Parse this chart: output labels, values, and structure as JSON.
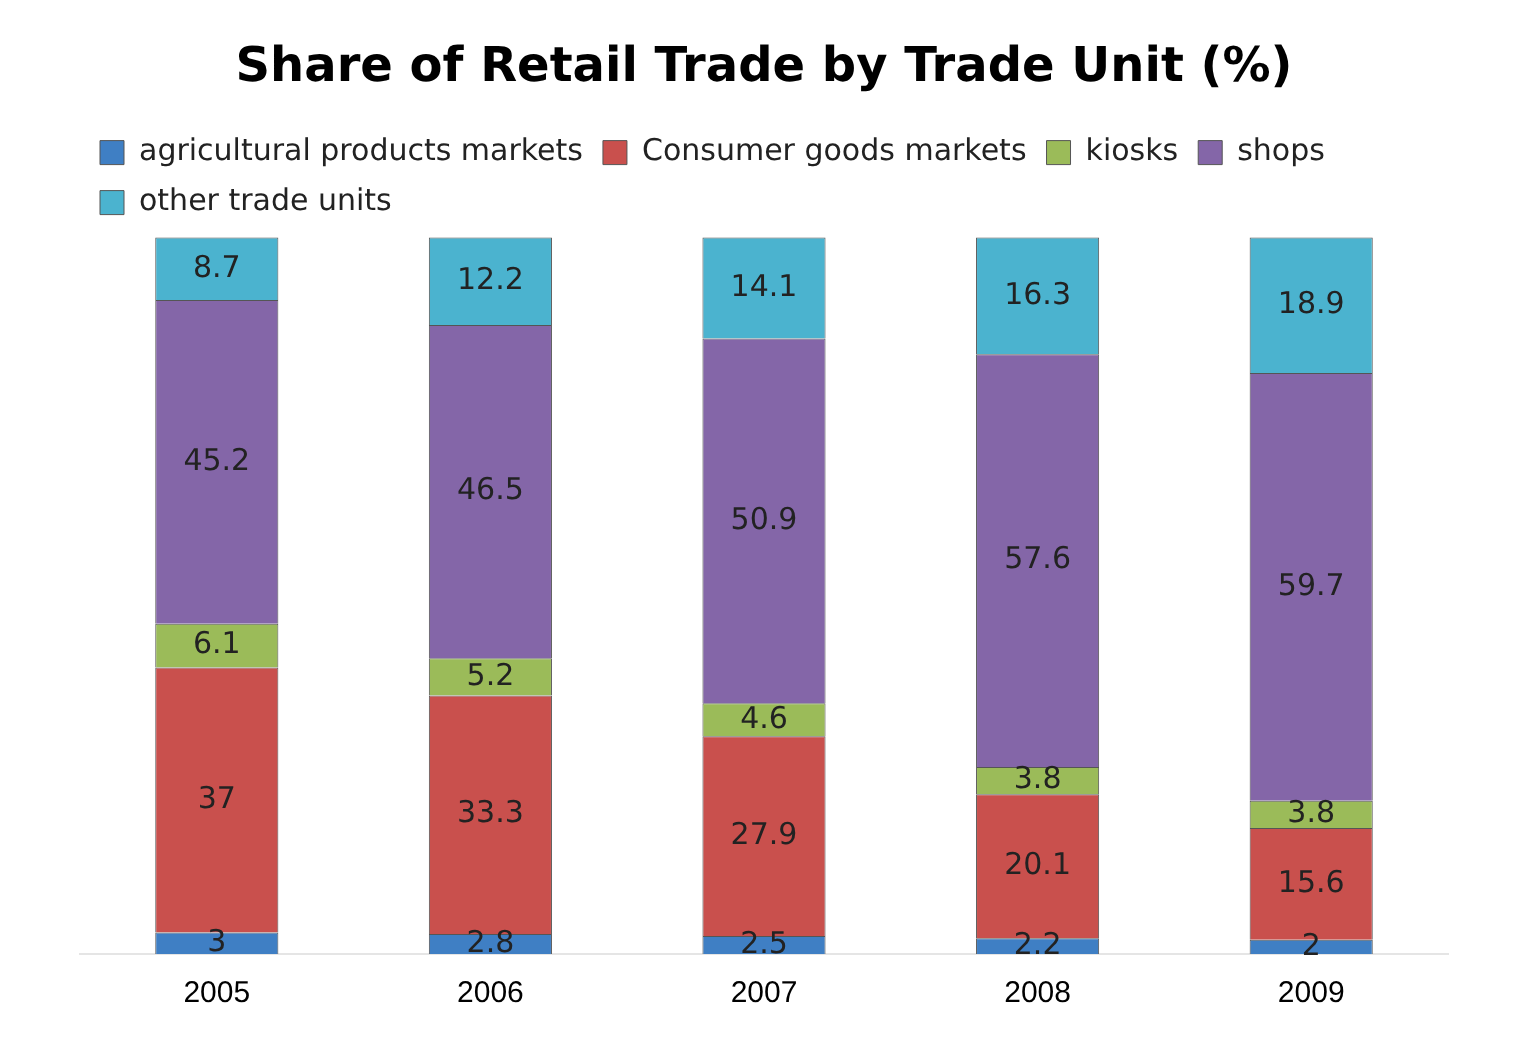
{
  "chart_data": {
    "type": "bar",
    "title": "Share of Retail Trade by Trade Unit (%)",
    "stacked": true,
    "legend": "top",
    "grid": false,
    "data_labels": true,
    "categories": [
      "2005",
      "2006",
      "2007",
      "2008",
      "2009"
    ],
    "series": [
      {
        "name": "agricultural products markets",
        "color": "#3f7fc4",
        "values": [
          3,
          2.8,
          2.5,
          2.2,
          2
        ]
      },
      {
        "name": "Consumer goods markets",
        "color": "#c9504d",
        "values": [
          37,
          33.3,
          27.9,
          20.1,
          15.6
        ]
      },
      {
        "name": "kiosks",
        "color": "#9bbb59",
        "values": [
          6.1,
          5.2,
          4.6,
          3.8,
          3.8
        ]
      },
      {
        "name": "shops",
        "color": "#8466a8",
        "values": [
          45.2,
          46.5,
          50.9,
          57.6,
          59.7
        ]
      },
      {
        "name": "other trade units",
        "color": "#4bb3cf",
        "values": [
          8.7,
          12.2,
          14.1,
          16.3,
          18.9
        ]
      }
    ]
  }
}
